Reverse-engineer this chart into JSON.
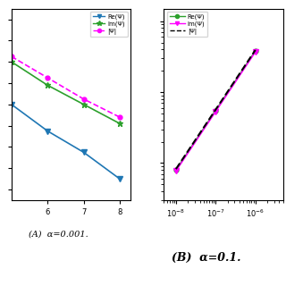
{
  "left": {
    "x": [
      5,
      6,
      7,
      8
    ],
    "re": [
      -0.6,
      -0.85,
      -1.05,
      -1.3
    ],
    "im": [
      -0.2,
      -0.42,
      -0.6,
      -0.78
    ],
    "abs": [
      -0.15,
      -0.35,
      -0.55,
      -0.72
    ],
    "re_color": "#1f77b4",
    "im_color": "#2ca02c",
    "abs_color": "#FF00FF",
    "xlim": [
      5.0,
      8.3
    ],
    "ylim": [
      -1.5,
      0.3
    ],
    "xticks": [
      6,
      7,
      8
    ],
    "legend_labels": [
      "Re(Ψ)",
      "Im(Ψ)",
      "|Ψ|"
    ]
  },
  "right": {
    "x": [
      1e-08,
      1e-07,
      1e-06
    ],
    "re": [
      0.008,
      0.055,
      0.38
    ],
    "im": [
      0.008,
      0.055,
      0.38
    ],
    "abs": [
      0.008,
      0.055,
      0.38
    ],
    "re_color": "#2ca02c",
    "im_color": "#FF00FF",
    "abs_color": "#000000",
    "xlim": [
      5e-09,
      5e-06
    ],
    "ylim": [
      0.003,
      1.5
    ],
    "legend_labels": [
      "Re(Ψ)",
      "Im(Ψ)",
      "|Ψ|"
    ]
  },
  "label_A": "(A)  α=0.001.",
  "label_B": "(B)  α=0.1."
}
